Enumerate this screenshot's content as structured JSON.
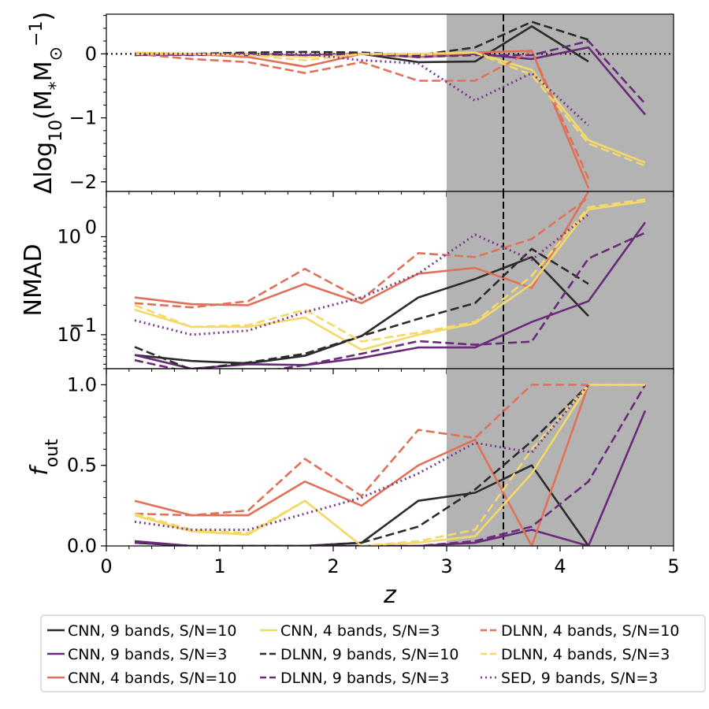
{
  "chart_data": {
    "type": "line",
    "x": [
      0.25,
      0.75,
      1.25,
      1.75,
      2.25,
      2.75,
      3.25,
      3.75,
      4.25,
      4.75
    ],
    "xlabel": "z",
    "xlim": [
      0,
      5
    ],
    "xticks": [
      "0",
      "1",
      "2",
      "3",
      "4",
      "5"
    ],
    "shaded_region": {
      "from": 3,
      "to": 5,
      "color": "#b3b3b3"
    },
    "vertical_line": {
      "x": 3.5,
      "style": "dashed"
    },
    "series_styles": [
      {
        "name": "CNN, 9 bands, S/N=10",
        "color": "#2b2b2b",
        "dash": "solid"
      },
      {
        "name": "CNN, 9 bands, S/N=3",
        "color": "#6a2a7a",
        "dash": "solid"
      },
      {
        "name": "CNN, 4 bands, S/N=10",
        "color": "#e07158",
        "dash": "solid"
      },
      {
        "name": "CNN, 4 bands, S/N=3",
        "color": "#f4d86a",
        "dash": "solid"
      },
      {
        "name": "DLNN, 9 bands, S/N=10",
        "color": "#2b2b2b",
        "dash": "dashed"
      },
      {
        "name": "DLNN, 9 bands, S/N=3",
        "color": "#6a2a7a",
        "dash": "dashed"
      },
      {
        "name": "DLNN, 4 bands, S/N=10",
        "color": "#e07158",
        "dash": "dashed"
      },
      {
        "name": "DLNN, 4 bands, S/N=3",
        "color": "#f4d86a",
        "dash": "dashed"
      },
      {
        "name": "SED, 9 bands, S/N=3",
        "color": "#7b3a8c",
        "dash": "dotted"
      }
    ],
    "panels": [
      {
        "id": "delta-mass",
        "ylabel_main": "Δlog",
        "ylabel_sub": "10",
        "ylabel_rest": "(M",
        "ylabel_star": "*",
        "ylabel_units": "M",
        "ylabel_sun": "⊙",
        "ylabel_exp": "−1",
        "ylabel_close": ")",
        "yscale": "linear",
        "ylim": [
          -2.15,
          0.62
        ],
        "yticks": [
          {
            "v": 0,
            "t": "0"
          },
          {
            "v": -1,
            "t": "−1"
          },
          {
            "v": -2,
            "t": "−2"
          }
        ],
        "hline": 0,
        "series": [
          {
            "name": "CNN, 9 bands, S/N=10",
            "values": [
              0.0,
              0.0,
              0.0,
              -0.03,
              0.0,
              -0.13,
              -0.12,
              0.43,
              -0.12,
              null
            ]
          },
          {
            "name": "CNN, 9 bands, S/N=3",
            "values": [
              -0.02,
              -0.01,
              -0.02,
              -0.02,
              0.0,
              -0.05,
              0.0,
              -0.08,
              0.1,
              -0.95
            ]
          },
          {
            "name": "CNN, 4 bands, S/N=10",
            "values": [
              0.01,
              0.0,
              -0.05,
              -0.2,
              0.0,
              -0.05,
              0.02,
              0.05,
              -2.1,
              null
            ]
          },
          {
            "name": "CNN, 4 bands, S/N=3",
            "values": [
              0.02,
              0.0,
              0.0,
              -0.05,
              0.0,
              0.0,
              0.02,
              -0.25,
              -1.35,
              -1.7
            ]
          },
          {
            "name": "DLNN, 9 bands, S/N=10",
            "values": [
              0.0,
              0.0,
              0.02,
              0.03,
              0.02,
              -0.02,
              0.1,
              0.5,
              0.22,
              null
            ]
          },
          {
            "name": "DLNN, 9 bands, S/N=3",
            "values": [
              0.0,
              -0.02,
              0.0,
              -0.02,
              0.0,
              -0.05,
              -0.02,
              -0.02,
              0.2,
              -0.78
            ]
          },
          {
            "name": "DLNN, 4 bands, S/N=10",
            "values": [
              0.0,
              -0.08,
              -0.13,
              -0.3,
              -0.13,
              -0.42,
              -0.42,
              0.05,
              -1.95,
              null
            ]
          },
          {
            "name": "DLNN, 4 bands, S/N=3",
            "values": [
              0.0,
              0.0,
              -0.02,
              -0.1,
              0.0,
              0.0,
              0.02,
              -0.33,
              -1.4,
              -1.75
            ]
          },
          {
            "name": "SED, 9 bands, S/N=3",
            "values": [
              0.0,
              0.0,
              0.0,
              0.0,
              -0.1,
              -0.15,
              -0.73,
              -0.3,
              -1.12,
              null
            ]
          }
        ]
      },
      {
        "id": "nmad",
        "ylabel": "NMAD",
        "yscale": "log",
        "ylim": [
          0.045,
          2.9
        ],
        "yticks": [
          {
            "v": 1,
            "t": "10",
            "exp": "0"
          },
          {
            "v": 0.1,
            "t": "10",
            "exp": "−1"
          }
        ],
        "series": [
          {
            "name": "CNN, 9 bands, S/N=10",
            "values": [
              0.062,
              0.054,
              0.051,
              0.061,
              0.097,
              0.24,
              0.37,
              0.62,
              0.155,
              null
            ]
          },
          {
            "name": "CNN, 9 bands, S/N=3",
            "values": [
              0.062,
              0.045,
              0.05,
              0.049,
              0.058,
              0.074,
              0.074,
              0.135,
              0.22,
              1.4
            ]
          },
          {
            "name": "CNN, 4 bands, S/N=10",
            "values": [
              0.24,
              0.205,
              0.2,
              0.33,
              0.21,
              0.42,
              0.48,
              0.3,
              2.9,
              null
            ]
          },
          {
            "name": "CNN, 4 bands, S/N=3",
            "values": [
              0.18,
              0.12,
              0.12,
              0.15,
              0.07,
              0.1,
              0.13,
              0.33,
              1.9,
              2.3
            ]
          },
          {
            "name": "DLNN, 9 bands, S/N=10",
            "values": [
              0.075,
              0.044,
              0.052,
              0.064,
              0.097,
              0.145,
              0.21,
              0.75,
              0.33,
              null
            ]
          },
          {
            "name": "DLNN, 9 bands, S/N=3",
            "values": [
              0.055,
              0.041,
              0.04,
              0.049,
              0.064,
              0.086,
              0.079,
              0.085,
              0.6,
              1.1
            ]
          },
          {
            "name": "DLNN, 4 bands, S/N=10",
            "values": [
              0.21,
              0.19,
              0.22,
              0.47,
              0.23,
              0.68,
              0.62,
              0.95,
              2.5,
              null
            ]
          },
          {
            "name": "DLNN, 4 bands, S/N=3",
            "values": [
              0.2,
              0.12,
              0.125,
              0.18,
              0.085,
              0.105,
              0.135,
              0.4,
              2.0,
              2.4
            ]
          },
          {
            "name": "SED, 9 bands, S/N=3",
            "values": [
              0.14,
              0.1,
              0.11,
              0.17,
              0.24,
              0.42,
              1.05,
              0.58,
              1.7,
              null
            ]
          }
        ]
      },
      {
        "id": "f-out",
        "ylabel": "f",
        "ylabel_sub": "out",
        "yscale": "linear",
        "ylim": [
          0,
          1.1
        ],
        "yticks": [
          {
            "v": 0,
            "t": "0.0"
          },
          {
            "v": 0.5,
            "t": "0.5"
          },
          {
            "v": 1,
            "t": "1.0"
          }
        ],
        "series": [
          {
            "name": "CNN, 9 bands, S/N=10",
            "values": [
              0.02,
              0.0,
              0.0,
              0.0,
              0.02,
              0.28,
              0.33,
              0.5,
              0.0,
              null
            ]
          },
          {
            "name": "CNN, 9 bands, S/N=3",
            "values": [
              0.03,
              0.0,
              0.0,
              0.0,
              0.0,
              0.0,
              0.02,
              0.1,
              0.0,
              0.84
            ]
          },
          {
            "name": "CNN, 4 bands, S/N=10",
            "values": [
              0.28,
              0.19,
              0.19,
              0.4,
              0.25,
              0.5,
              0.66,
              0.0,
              1.0,
              null
            ]
          },
          {
            "name": "CNN, 4 bands, S/N=3",
            "values": [
              0.19,
              0.09,
              0.07,
              0.28,
              0.0,
              0.02,
              0.06,
              0.45,
              1.0,
              1.0
            ]
          },
          {
            "name": "DLNN, 9 bands, S/N=10",
            "values": [
              0.02,
              0.0,
              0.0,
              0.0,
              0.02,
              0.12,
              0.35,
              0.65,
              1.0,
              null
            ]
          },
          {
            "name": "DLNN, 9 bands, S/N=3",
            "values": [
              0.02,
              0.0,
              0.0,
              0.0,
              0.0,
              0.0,
              0.03,
              0.12,
              0.4,
              1.0
            ]
          },
          {
            "name": "DLNN, 4 bands, S/N=10",
            "values": [
              0.2,
              0.19,
              0.22,
              0.54,
              0.31,
              0.72,
              0.67,
              1.0,
              1.0,
              null
            ]
          },
          {
            "name": "DLNN, 4 bands, S/N=3",
            "values": [
              0.2,
              0.1,
              0.08,
              0.28,
              0.0,
              0.03,
              0.1,
              0.6,
              1.0,
              1.0
            ]
          },
          {
            "name": "SED, 9 bands, S/N=3",
            "values": [
              0.15,
              0.1,
              0.1,
              0.2,
              0.3,
              0.45,
              0.64,
              0.58,
              1.0,
              null
            ]
          }
        ]
      }
    ]
  }
}
